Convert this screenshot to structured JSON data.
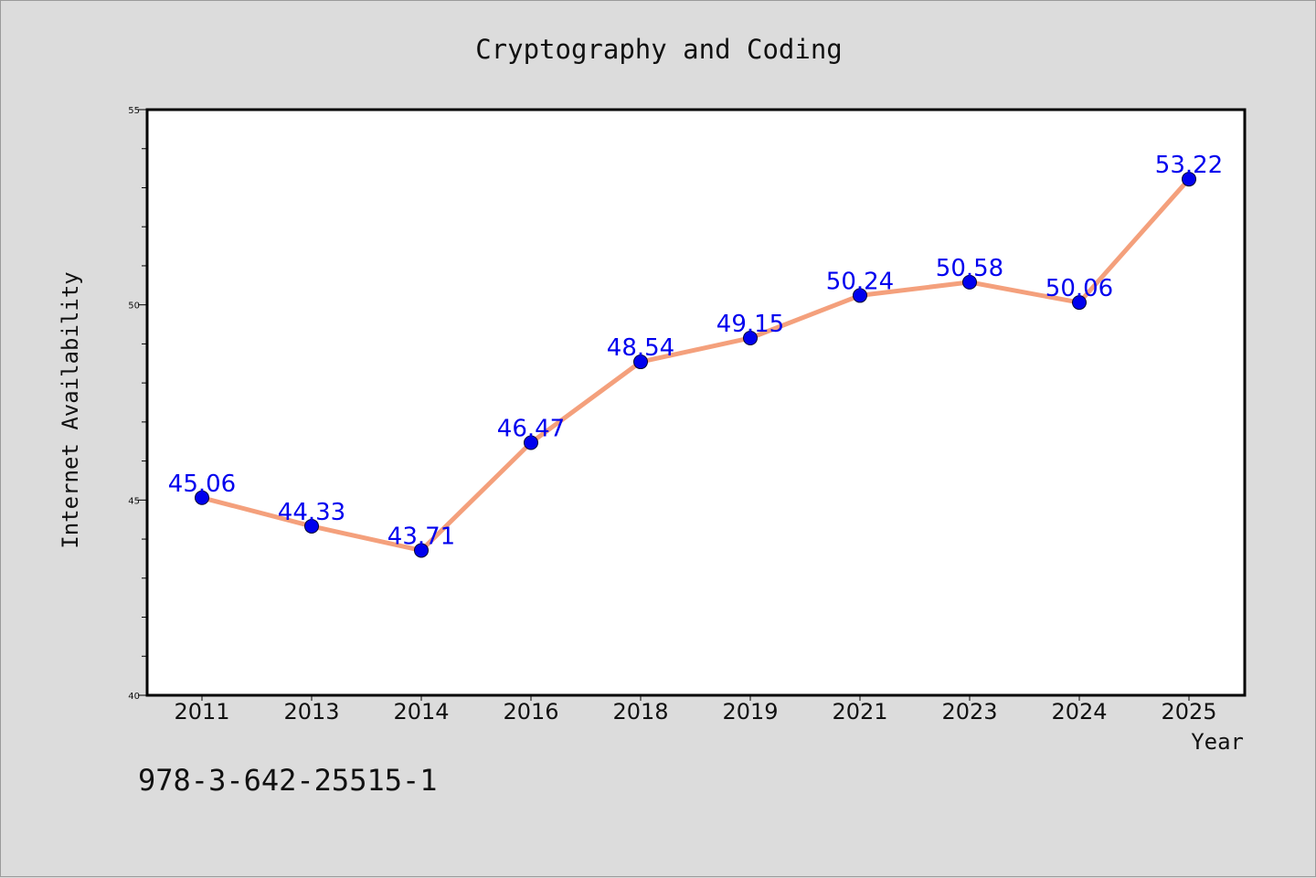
{
  "chart_data": {
    "type": "line",
    "title": "Cryptography and Coding",
    "xlabel": "Year",
    "ylabel": "Internet Availability",
    "categories": [
      "2011",
      "2013",
      "2014",
      "2016",
      "2018",
      "2019",
      "2021",
      "2023",
      "2024",
      "2025"
    ],
    "values": [
      45.06,
      44.33,
      43.71,
      46.47,
      48.54,
      49.15,
      50.24,
      50.58,
      50.06,
      53.22
    ],
    "data_labels": [
      "45.06",
      "44.33",
      "43.71",
      "46.47",
      "48.54",
      "49.15",
      "50.24",
      "50.58",
      "50.06",
      "53.22"
    ],
    "ylim": [
      40,
      55
    ],
    "y_ticks": [
      "40",
      "45",
      "50",
      "55"
    ],
    "grid": false,
    "line_color": "#f4a07c",
    "marker_color": "#0000ee",
    "label_color": "#0000ee"
  },
  "footnote": "978-3-642-25515-1"
}
